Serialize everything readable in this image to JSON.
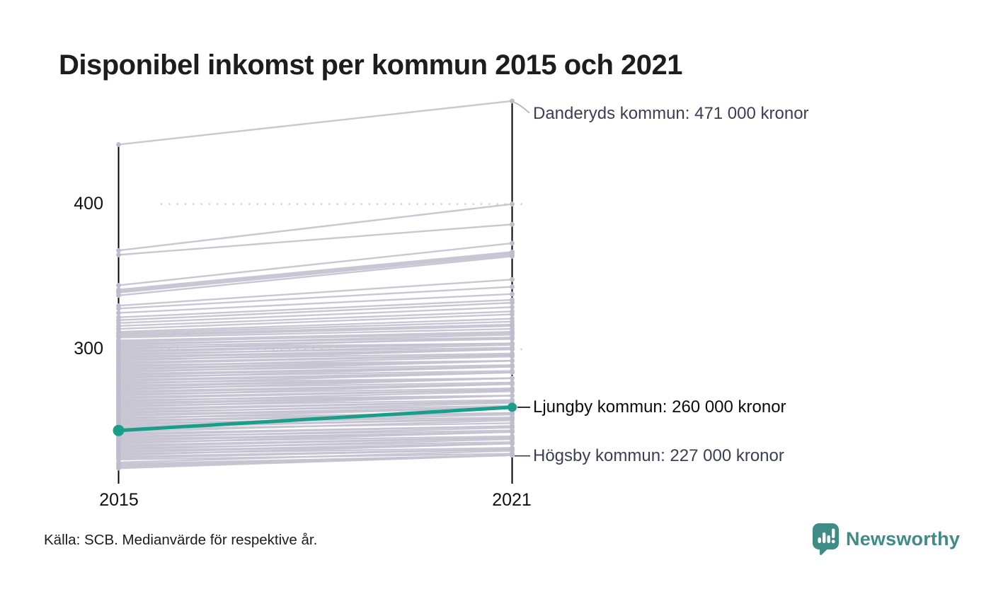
{
  "header": {
    "title": "Disponibel inkomst per kommun 2015 och 2021"
  },
  "footer": {
    "source": "Källa: SCB. Medianvärde för respektive år.",
    "brand": "Newsworthy"
  },
  "colors": {
    "background_line": "#c5c3d1",
    "background_dot": "#bfbdcd",
    "highlight": "#1b9e89",
    "axis": "#000000",
    "gridline": "#d7d7d7",
    "leader_light": "#b3b1c1",
    "leader_dark": "#3a3f54",
    "leader_black": "#000000",
    "annotation_slate": "#3a3f54",
    "annotation_black": "#0c0c0e",
    "brand_teal": "#3e8c85"
  },
  "chart_data": {
    "type": "line",
    "subtype": "slopegraph",
    "title": "Disponibel inkomst per kommun 2015 och 2021",
    "unit": "tusen kronor (medianvärde)",
    "x_labels": [
      "2015",
      "2021"
    ],
    "y_ticks": [
      400,
      300
    ],
    "y_tick_labels": [
      "400",
      "300"
    ],
    "ylim": [
      215,
      480
    ],
    "grid": "dotted-horizontal",
    "legend_position": "none",
    "highlight_series": {
      "name": "Ljungby kommun",
      "values": [
        244,
        260
      ]
    },
    "annotations": [
      {
        "target": "Danderyds kommun",
        "text": "Danderyds kommun: 471 000 kronor",
        "anchor_value": 471,
        "style": "slate",
        "leader": "curve-light"
      },
      {
        "target": "Ljungby kommun",
        "text": "Ljungby kommun: 260 000 kronor",
        "anchor_value": 260,
        "style": "black",
        "leader": "line-black"
      },
      {
        "target": "Högsby kommun",
        "text": "Högsby kommun: 227 000 kronor",
        "anchor_value": 227,
        "style": "slate",
        "leader": "line-dark"
      }
    ],
    "background_lines": [
      [
        441,
        471
      ],
      [
        368,
        400
      ],
      [
        365,
        386
      ],
      [
        344,
        373
      ],
      [
        341,
        367
      ],
      [
        340,
        366
      ],
      [
        339,
        365
      ],
      [
        337,
        364
      ],
      [
        330,
        348
      ],
      [
        328,
        343
      ],
      [
        325,
        338
      ],
      [
        322,
        334
      ],
      [
        320,
        332
      ],
      [
        318,
        329
      ],
      [
        316,
        326
      ],
      [
        314,
        324
      ],
      [
        312,
        321
      ],
      [
        311,
        319
      ],
      [
        310,
        317
      ],
      [
        309,
        316
      ],
      [
        308,
        314
      ],
      [
        306,
        312
      ],
      [
        305,
        311
      ],
      [
        304,
        308
      ],
      [
        303,
        310
      ],
      [
        302,
        307
      ],
      [
        301,
        304
      ],
      [
        300,
        308
      ],
      [
        299,
        304
      ],
      [
        298,
        304
      ],
      [
        297,
        301
      ],
      [
        296,
        303
      ],
      [
        295,
        300
      ],
      [
        294,
        300
      ],
      [
        293,
        297
      ],
      [
        292,
        300
      ],
      [
        291,
        296
      ],
      [
        290,
        296
      ],
      [
        289,
        292
      ],
      [
        288,
        295
      ],
      [
        287,
        292
      ],
      [
        286,
        292
      ],
      [
        285,
        289
      ],
      [
        284,
        292
      ],
      [
        283,
        288
      ],
      [
        282,
        288
      ],
      [
        281,
        285
      ],
      [
        280,
        288
      ],
      [
        279,
        284
      ],
      [
        278,
        284
      ],
      [
        277,
        280
      ],
      [
        276,
        284
      ],
      [
        275,
        280
      ],
      [
        274,
        280
      ],
      [
        273,
        277
      ],
      [
        272,
        280
      ],
      [
        271,
        276
      ],
      [
        270,
        276
      ],
      [
        269,
        273
      ],
      [
        268,
        276
      ],
      [
        267,
        272
      ],
      [
        266,
        272
      ],
      [
        265,
        268
      ],
      [
        264,
        271
      ],
      [
        263,
        268
      ],
      [
        262,
        268
      ],
      [
        261,
        265
      ],
      [
        260,
        268
      ],
      [
        259,
        264
      ],
      [
        258,
        264
      ],
      [
        257,
        261
      ],
      [
        256,
        263
      ],
      [
        255,
        260
      ],
      [
        254,
        260
      ],
      [
        253,
        256
      ],
      [
        252,
        260
      ],
      [
        251,
        256
      ],
      [
        250,
        256
      ],
      [
        249,
        253
      ],
      [
        248,
        255
      ],
      [
        247,
        252
      ],
      [
        246,
        252
      ],
      [
        245,
        249
      ],
      [
        243,
        251
      ],
      [
        242,
        247
      ],
      [
        241,
        247
      ],
      [
        240,
        244
      ],
      [
        239,
        246
      ],
      [
        238,
        243
      ],
      [
        237,
        243
      ],
      [
        236,
        240
      ],
      [
        235,
        243
      ],
      [
        234,
        239
      ],
      [
        233,
        239
      ],
      [
        232,
        236
      ],
      [
        231,
        238
      ],
      [
        230,
        235
      ],
      [
        229,
        235
      ],
      [
        228,
        232
      ],
      [
        227,
        235
      ],
      [
        226,
        231
      ],
      [
        225,
        231
      ],
      [
        224,
        228
      ],
      [
        222,
        230
      ],
      [
        221,
        227
      ],
      [
        220,
        227
      ],
      [
        219,
        227
      ],
      [
        218,
        227
      ]
    ]
  }
}
